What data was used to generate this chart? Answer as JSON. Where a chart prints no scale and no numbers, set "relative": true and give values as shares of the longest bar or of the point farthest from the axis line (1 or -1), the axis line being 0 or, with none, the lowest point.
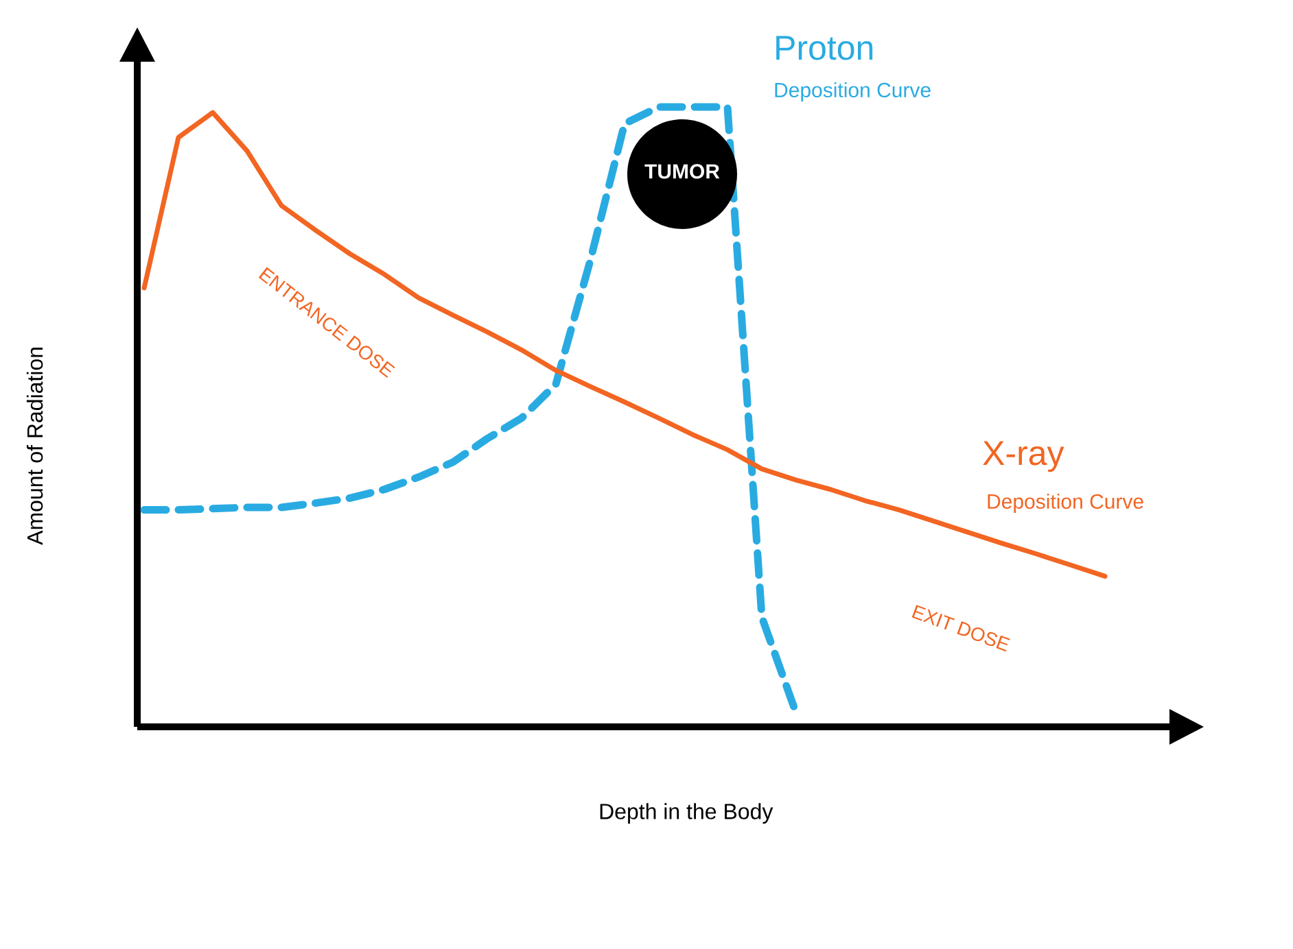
{
  "chart_data": {
    "type": "line",
    "relative": true,
    "xlabel": "Depth in the Body",
    "ylabel": "Amount of Radiation",
    "categories": [
      null,
      null,
      null,
      null,
      null,
      null,
      null,
      null,
      null,
      null,
      null,
      null,
      null,
      null,
      null,
      null,
      null,
      null,
      null,
      null,
      null,
      null,
      null,
      null,
      null,
      null,
      null,
      null,
      null
    ],
    "series": [
      {
        "name": "Proton",
        "color": "#29abe2",
        "line_style": "dashed",
        "values": [
          0.35,
          0.35,
          0.352,
          0.354,
          0.354,
          0.361,
          0.369,
          0.383,
          0.403,
          0.427,
          0.465,
          0.498,
          0.553,
          0.752,
          0.973,
          1,
          1,
          1,
          0.177,
          0.022,
          null,
          null,
          null,
          null,
          null,
          null,
          null,
          null,
          null
        ]
      },
      {
        "name": "X-ray",
        "color": "#f26522",
        "line_style": "solid",
        "values": [
          0.708,
          0.951,
          0.991,
          0.929,
          0.841,
          0.801,
          0.763,
          0.73,
          0.692,
          0.664,
          0.637,
          0.608,
          0.575,
          0.549,
          0.524,
          0.498,
          0.471,
          0.447,
          0.416,
          0.398,
          0.383,
          0.365,
          0.35,
          0.332,
          0.314,
          0.296,
          0.279,
          0.261,
          0.243
        ]
      }
    ],
    "annotations": [
      "Deposition Curve",
      "Deposition Curve",
      "ENTRANCE DOSE",
      "EXIT DOSE",
      "TUMOR"
    ]
  }
}
